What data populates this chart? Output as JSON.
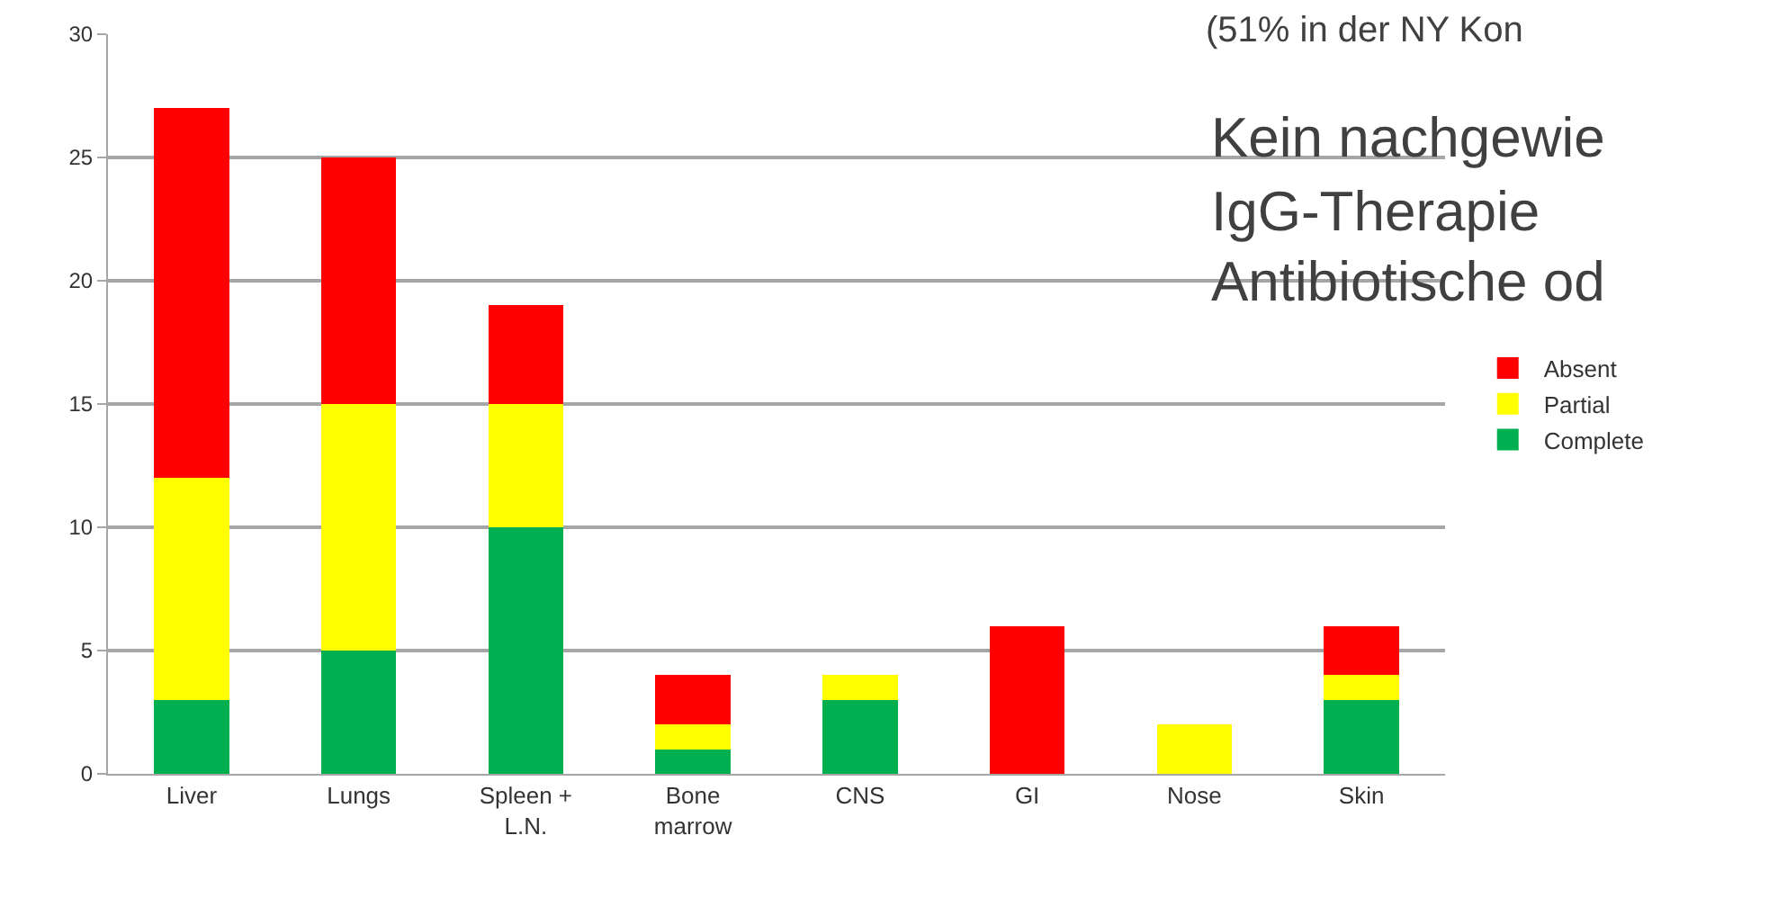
{
  "chart_data": {
    "type": "bar",
    "stacked": true,
    "categories": [
      "Liver",
      "Lungs",
      "Spleen +\nL.N.",
      "Bone\nmarrow",
      "CNS",
      "GI",
      "Nose",
      "Skin"
    ],
    "series": [
      {
        "name": "Complete",
        "color": "#00b050",
        "values": [
          3,
          5,
          10,
          1,
          3,
          0,
          0,
          3
        ]
      },
      {
        "name": "Partial",
        "color": "#ffff00",
        "values": [
          9,
          10,
          5,
          1,
          1,
          0,
          2,
          1
        ]
      },
      {
        "name": "Absent",
        "color": "#ff0000",
        "values": [
          15,
          10,
          4,
          2,
          0,
          6,
          0,
          2
        ]
      }
    ],
    "ylim": [
      0,
      30
    ],
    "yticks": [
      0,
      5,
      10,
      15,
      20,
      25,
      30
    ],
    "grid": "y",
    "legend": "right",
    "annotations": [
      "(51% in der NY Kon",
      "Kein nachgewie",
      "IgG-Therapie",
      "Antibiotische od"
    ]
  }
}
